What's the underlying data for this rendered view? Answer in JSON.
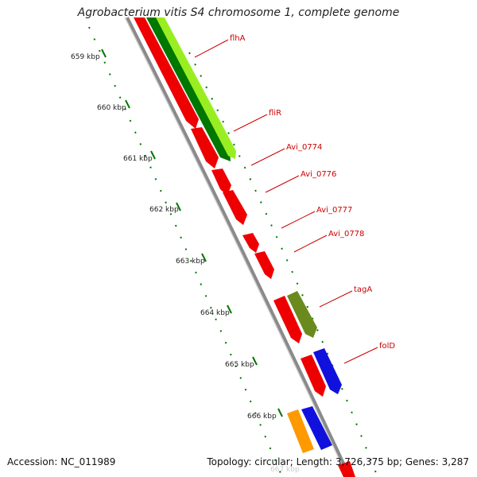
{
  "title": "Agrobacterium vitis S4 chromosome 1, complete genome",
  "footer": {
    "accession_label": "Accession:",
    "accession": "NC_011989",
    "topology_label": "Topology:",
    "topology": "circular",
    "length_label": "Length:",
    "length": "3,726,375 bp",
    "genes_label": "Genes:",
    "genes": "3,287"
  },
  "ruler": {
    "ticks": [
      "659 kbp",
      "660 kbp",
      "661 kbp",
      "662 kbp",
      "663 kbp",
      "664 kbp",
      "665 kbp",
      "666 kbp",
      "667 kbp"
    ]
  },
  "gene_labels": [
    "flhA",
    "fliR",
    "Avi_0774",
    "Avi_0776",
    "Avi_0777",
    "Avi_0778",
    "tagA",
    "folD"
  ],
  "colors": {
    "cds": "#ee0000",
    "gene_green_light": "#99ee22",
    "gene_green_dark": "#007700",
    "gene_olive": "#6b8a1e",
    "gene_blue": "#1111dd",
    "gene_orange": "#ff9900",
    "backbone": "#8a8a8a",
    "label": "#cc0000",
    "ruler": "#007700"
  }
}
